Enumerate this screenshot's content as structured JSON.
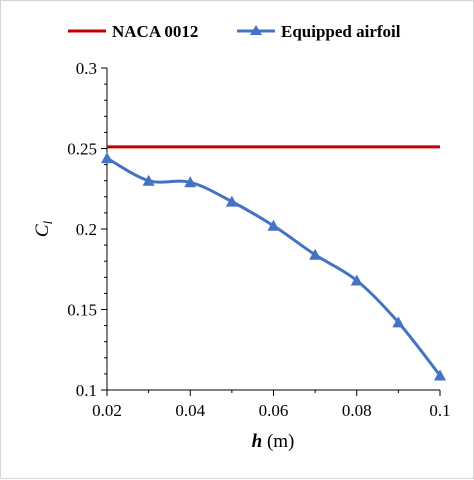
{
  "chart_data": {
    "type": "line",
    "title": "",
    "xlabel": {
      "symbol": "h",
      "unit": " (m)"
    },
    "ylabel": {
      "symbol": "C",
      "subscript": "l"
    },
    "xlim": [
      0.02,
      0.1
    ],
    "ylim": [
      0.1,
      0.3
    ],
    "x_ticks": [
      0.02,
      0.04,
      0.06,
      0.08,
      0.1
    ],
    "x_tick_labels": [
      "0.02",
      "0.04",
      "0.06",
      "0.08",
      "0.1"
    ],
    "y_ticks": [
      0.1,
      0.15,
      0.2,
      0.25,
      0.3
    ],
    "y_tick_labels": [
      "0.1",
      "0.15",
      "0.2",
      "0.25",
      "0.3"
    ],
    "grid": false,
    "legend_position": "top",
    "series": [
      {
        "name": "NACA 0012",
        "color": "#c00000",
        "marker": "none",
        "x": [
          0.02,
          0.1
        ],
        "y": [
          0.251,
          0.251
        ]
      },
      {
        "name": "Equipped airfoil",
        "color": "#4472c4",
        "marker": "triangle",
        "x": [
          0.02,
          0.03,
          0.04,
          0.05,
          0.06,
          0.07,
          0.08,
          0.09,
          0.1
        ],
        "y": [
          0.244,
          0.23,
          0.229,
          0.217,
          0.202,
          0.184,
          0.168,
          0.142,
          0.109
        ]
      }
    ]
  }
}
